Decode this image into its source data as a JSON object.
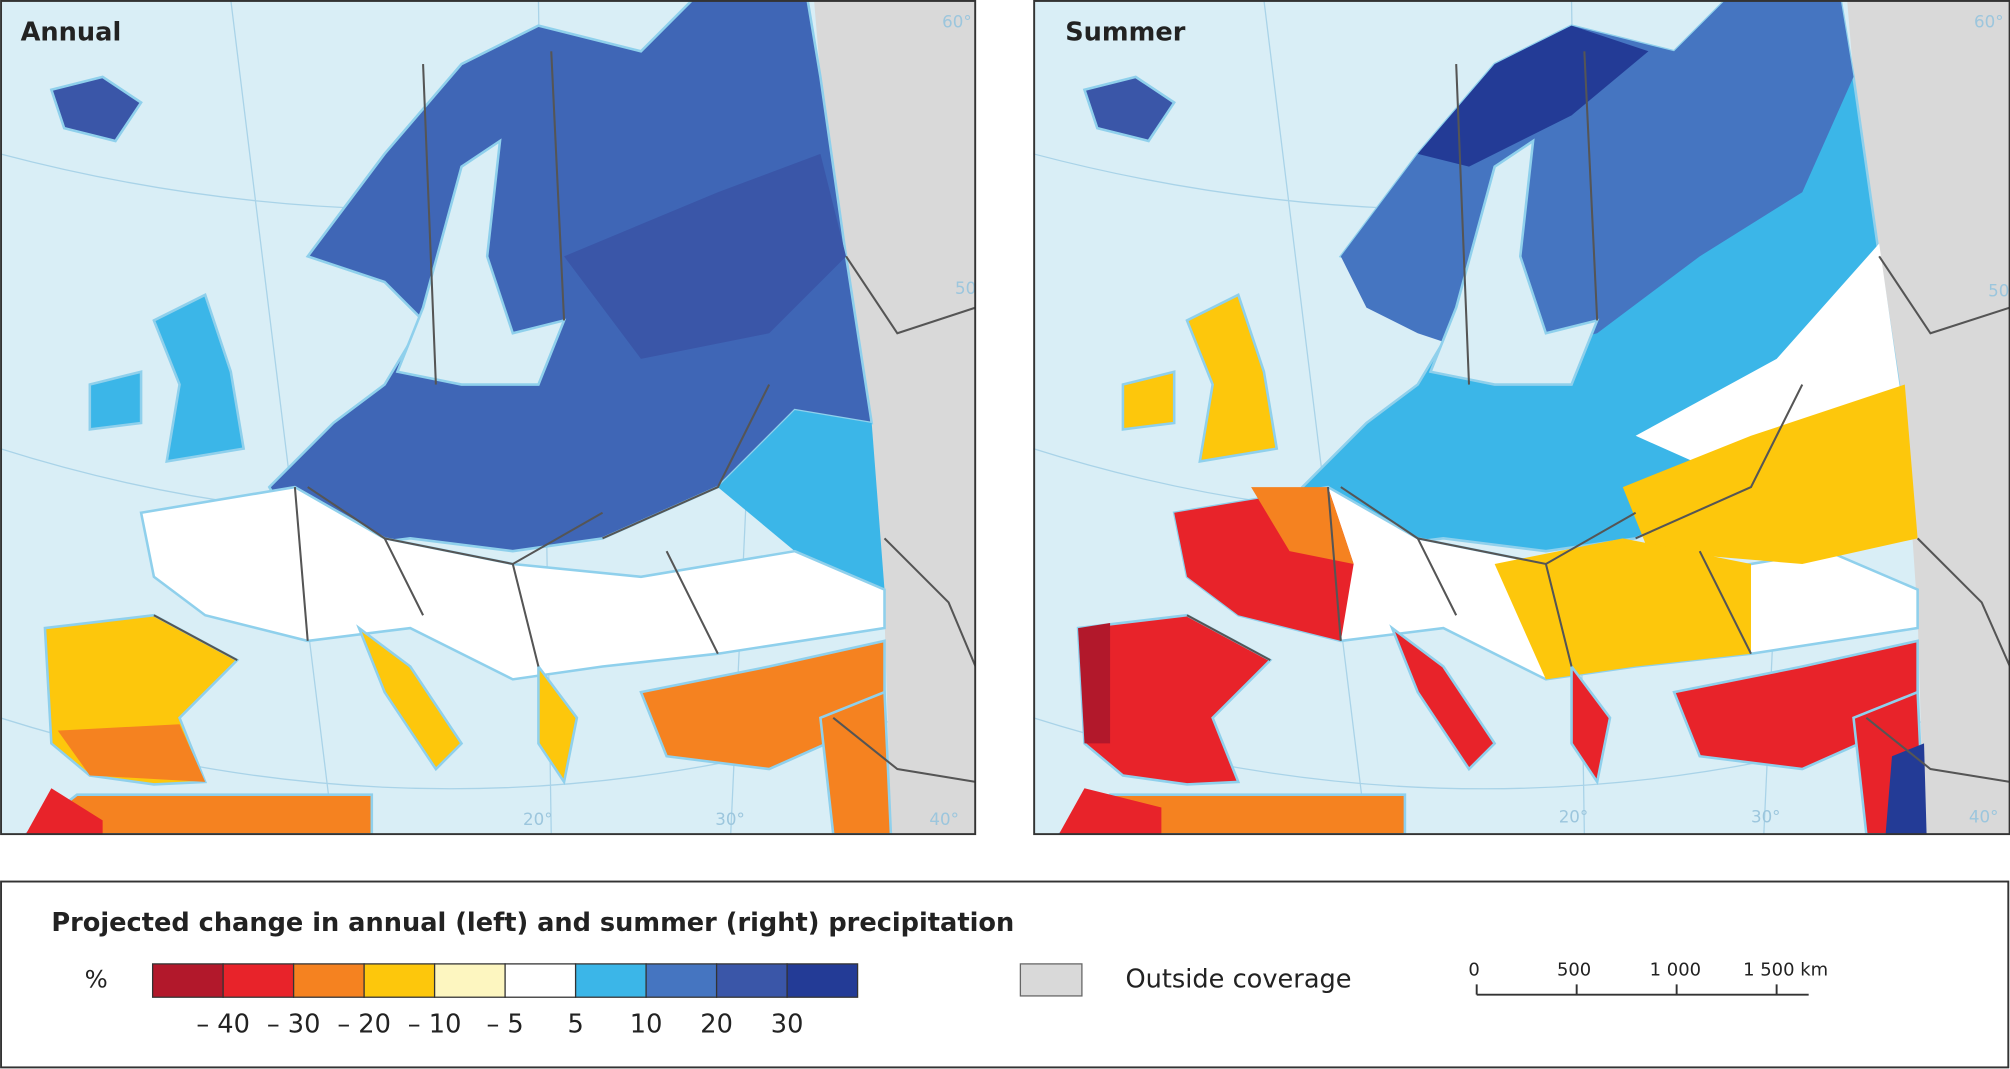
{
  "maps": [
    {
      "title": "Annual",
      "graticule_labels": [
        "60°",
        "50°",
        "20°",
        "30°",
        "40°"
      ]
    },
    {
      "title": "Summer",
      "graticule_labels": [
        "60°",
        "50°",
        "20°",
        "30°",
        "40°"
      ]
    }
  ],
  "legend": {
    "title": "Projected change in annual (left) and summer (right) precipitation",
    "unit": "%",
    "colors": [
      "#b2182b",
      "#e8232a",
      "#f58220",
      "#fdc70c",
      "#fdf6c0",
      "#ffffff",
      "#3bb6e8",
      "#4575c1",
      "#3a56a8",
      "#233b96"
    ],
    "tick_labels": [
      "– 40",
      "– 30",
      "– 20",
      "– 10",
      "– 5",
      "5",
      "10",
      "20",
      "30"
    ],
    "outside_coverage": "Outside coverage",
    "outside_color": "#d9d9d9"
  },
  "scale_bar": {
    "labels": [
      "0",
      "500",
      "1 000",
      "1 500 km"
    ]
  }
}
